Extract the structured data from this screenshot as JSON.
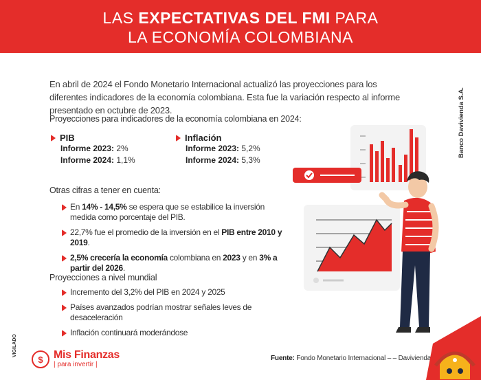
{
  "header": {
    "line1_pre": "LAS ",
    "line1_bold": "EXPECTATIVAS DEL FMI",
    "line1_post": " PARA",
    "line2": "LA ECONOMÍA COLOMBIANA"
  },
  "intro": "En abril de 2024 el Fondo Monetario Internacional actualizó las proyecciones para los diferentes indicadores de la economía colombiana. Esta fue la variación respecto al informe presentado en octubre de 2023.",
  "projections_title": "Proyecciones para indicadores de la economía colombiana en 2024:",
  "indicators": [
    {
      "name": "PIB",
      "rows": [
        {
          "label": "Informe 2023:",
          "value": "2%"
        },
        {
          "label": "Informe 2024:",
          "value": "1,1%"
        }
      ]
    },
    {
      "name": "Inflación",
      "rows": [
        {
          "label": "Informe 2023:",
          "value": "5,2%"
        },
        {
          "label": "Informe 2024:",
          "value": "5,3%"
        }
      ]
    }
  ],
  "other_title": "Otras cifras a tener en cuenta:",
  "other_items": [
    {
      "a": "En ",
      "b": "14% - 14,5%",
      "c": " se espera que se estabilice la inversión medida como porcentaje del PIB.",
      "d": "",
      "e": "",
      "f": "",
      "g": ""
    },
    {
      "a": "22,7% fue el promedio de la inversión en el ",
      "b": "PIB entre 2010 y 2019",
      "c": ".",
      "d": "",
      "e": "",
      "f": "",
      "g": ""
    },
    {
      "a": "",
      "b": "2,5% crecería la economía",
      "c": " colombiana en ",
      "d": "2023",
      "e": " y en ",
      "f": "3% a partir del 2026",
      "g": "."
    }
  ],
  "world_title": "Proyecciones a nivel mundial",
  "world_items": [
    "Incremento del 3,2% del PIB en 2024 y 2025",
    "Países avanzados podrían mostrar señales leves de desaceleración",
    "Inflación continuará moderándose"
  ],
  "source_label": "Fuente:",
  "source_text": " Fondo Monetario Internacional – – Davivienda",
  "side_label": "Banco Davivienda S.A.",
  "vigilado": "VIGILADO",
  "logo": {
    "symbol": "$",
    "title": "Mis Finanzas",
    "tagline": "| para invertir |"
  },
  "colors": {
    "accent": "#e42d2a",
    "text": "#333333"
  }
}
